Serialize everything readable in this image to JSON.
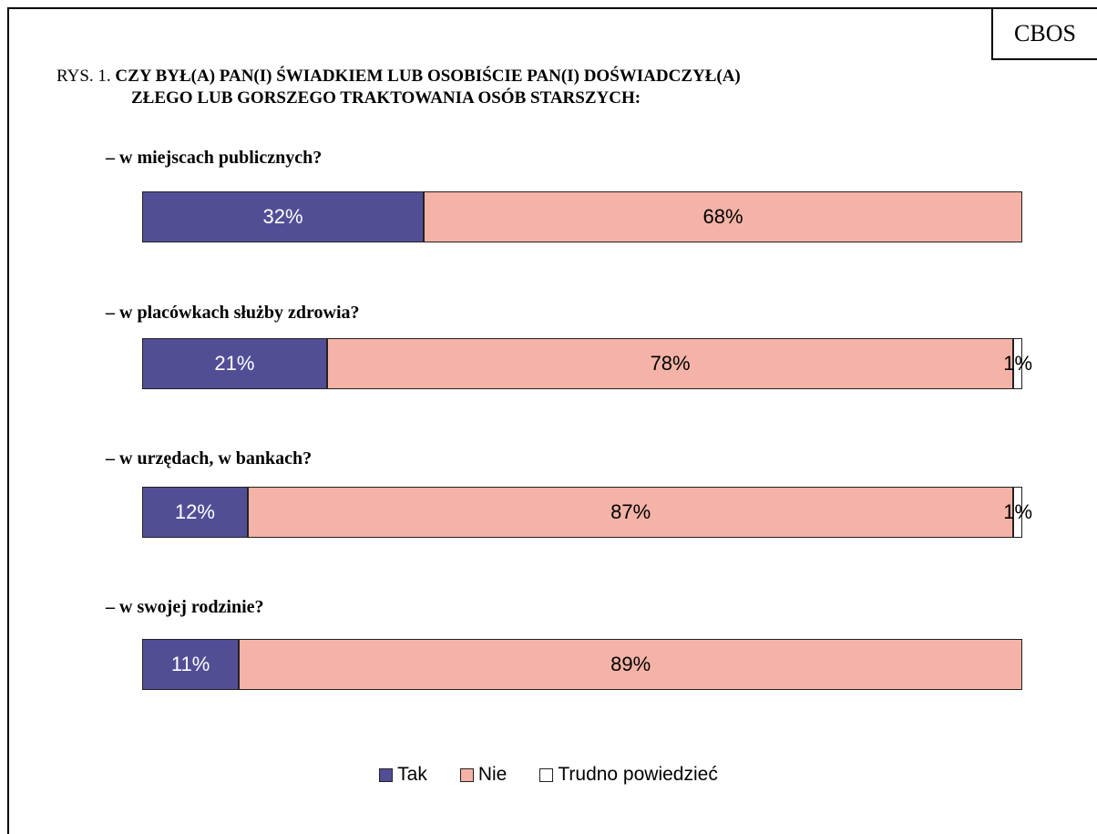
{
  "badge": "CBOS",
  "title_prefix": "RYS. 1.",
  "title_line1": "CZY BYŁ(A) PAN(I) ŚWIADKIEM LUB OSOBIŚCIE PAN(I) DOŚWIADCZYŁ(A)",
  "title_line2": "ZŁEGO LUB GORSZEGO TRAKTOWANIA OSÓB STARSZYCH:",
  "colors": {
    "tak": "#524e96",
    "nie": "#f4b3a6",
    "trudno": "#ffffff"
  },
  "chart_data": {
    "type": "bar",
    "stacked": true,
    "orientation": "horizontal",
    "categories": [
      "– w miejscach publicznych?",
      "– w placówkach służby zdrowia?",
      "– w urzędach, w bankach?",
      "– w swojej rodzinie?"
    ],
    "series": [
      {
        "name": "Tak",
        "values": [
          32,
          21,
          12,
          11
        ]
      },
      {
        "name": "Nie",
        "values": [
          68,
          78,
          87,
          89
        ]
      },
      {
        "name": "Trudno powiedzieć",
        "values": [
          0,
          1,
          1,
          0
        ]
      }
    ],
    "value_labels": [
      [
        "32%",
        "68%",
        ""
      ],
      [
        "21%",
        "78%",
        "1%"
      ],
      [
        "12%",
        "87%",
        "1%"
      ],
      [
        "11%",
        "89%",
        ""
      ]
    ],
    "xlim": [
      0,
      100
    ],
    "legend": [
      "Tak",
      "Nie",
      "Trudno powiedzieć"
    ],
    "legend_position": "bottom"
  }
}
